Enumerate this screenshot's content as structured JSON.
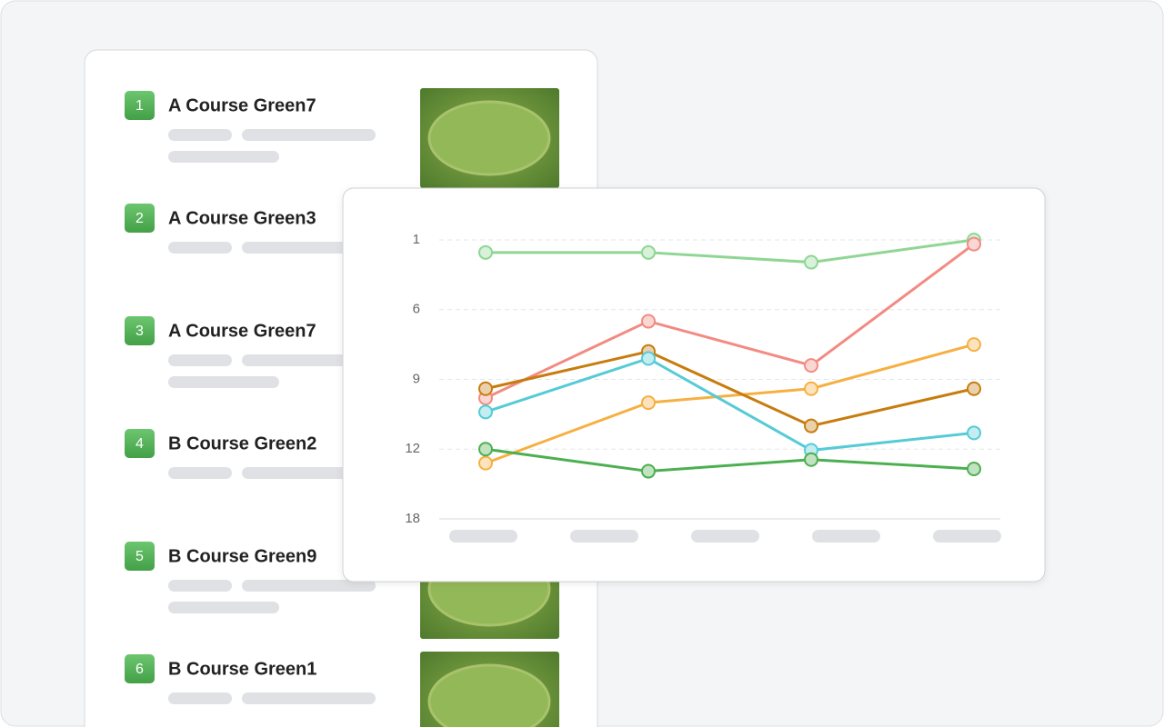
{
  "list": {
    "items": [
      {
        "rank": 1,
        "name": "A Course Green7"
      },
      {
        "rank": 2,
        "name": "A Course Green3"
      },
      {
        "rank": 3,
        "name": "A Course Green7"
      },
      {
        "rank": 4,
        "name": "B Course Green2"
      },
      {
        "rank": 5,
        "name": "B Course Green9"
      },
      {
        "rank": 6,
        "name": "B Course Green1"
      }
    ]
  },
  "chart_data": {
    "type": "line",
    "categories": [
      null,
      null,
      null,
      null
    ],
    "ylim": [
      1,
      18
    ],
    "y_inverted": true,
    "yticks": [
      1,
      6,
      9,
      12,
      18
    ],
    "grid": true,
    "series": [
      {
        "color": "#8fd694",
        "values": [
          1.9,
          1.9,
          2.6,
          1
        ]
      },
      {
        "color": "#f28b82",
        "values": [
          9.8,
          6.5,
          8.4,
          1.3
        ]
      },
      {
        "color": "#f6b042",
        "values": [
          13.2,
          10,
          9.4,
          7.5
        ]
      },
      {
        "color": "#c77c0e",
        "values": [
          9.4,
          7.8,
          11,
          9.4
        ]
      },
      {
        "color": "#56cbd6",
        "values": [
          10.4,
          8.1,
          12.1,
          11.3
        ]
      },
      {
        "color": "#4caf50",
        "values": [
          12,
          13.9,
          12.9,
          13.7
        ]
      }
    ]
  }
}
